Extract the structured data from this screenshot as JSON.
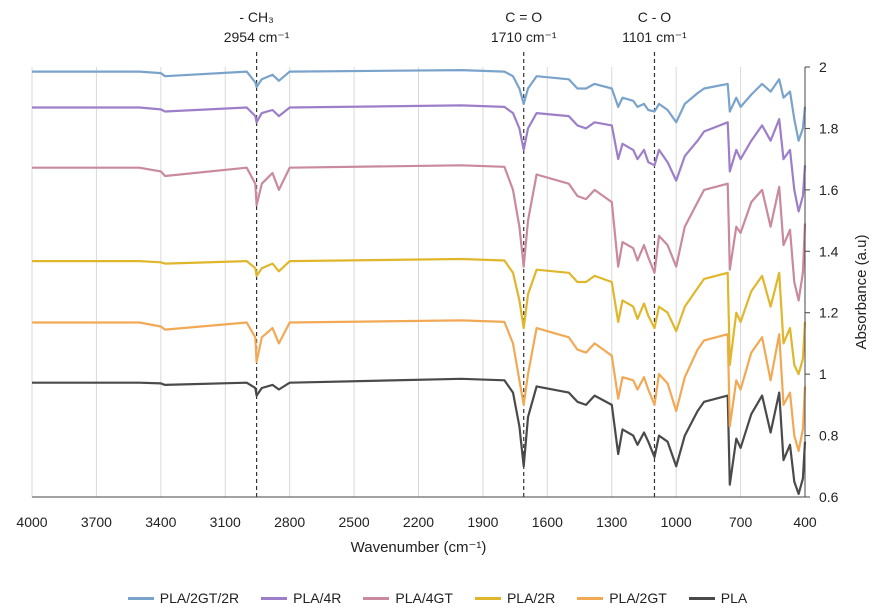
{
  "chart_data": {
    "type": "line",
    "title": "",
    "xlabel": "Wavenumber (cm⁻¹)",
    "ylabel": "Absorbance (a.u)",
    "xlim": [
      4000,
      400
    ],
    "ylim": [
      0.6,
      2
    ],
    "x_reversed": true,
    "y_axis_position": "right",
    "grid": "vertical",
    "legend_position": "bottom",
    "x_ticks": [
      "4000",
      "3700",
      "3400",
      "3100",
      "2800",
      "2500",
      "2200",
      "1900",
      "1600",
      "1300",
      "1000",
      "700",
      "400"
    ],
    "y_ticks": [
      "0.6",
      "0.8",
      "1",
      "1.2",
      "1.4",
      "1.6",
      "1.8",
      "2"
    ],
    "annotations": [
      {
        "x": 2954,
        "line1": "- CH₃",
        "line2": "2954 cm⁻¹"
      },
      {
        "x": 1710,
        "line1": "C = O",
        "line2": "1710 cm⁻¹"
      },
      {
        "x": 1101,
        "line1": "C - O",
        "line2": "1101 cm⁻¹"
      }
    ],
    "series": [
      {
        "name": "PLA/2GT/2R",
        "color": "#7aa3cc",
        "x": [
          4000,
          3500,
          3400,
          3380,
          3000,
          2960,
          2954,
          2930,
          2880,
          2850,
          2800,
          2000,
          1800,
          1760,
          1730,
          1710,
          1690,
          1650,
          1500,
          1460,
          1420,
          1380,
          1300,
          1270,
          1250,
          1200,
          1180,
          1150,
          1130,
          1101,
          1080,
          1040,
          1000,
          960,
          900,
          870,
          760,
          755,
          750,
          720,
          700,
          650,
          600,
          560,
          520,
          500,
          470,
          450,
          430,
          410,
          400
        ],
        "y": [
          1.985,
          1.985,
          1.98,
          1.97,
          1.985,
          1.95,
          1.935,
          1.96,
          1.975,
          1.955,
          1.985,
          1.99,
          1.985,
          1.97,
          1.93,
          1.88,
          1.93,
          1.97,
          1.96,
          1.93,
          1.93,
          1.945,
          1.93,
          1.87,
          1.9,
          1.89,
          1.87,
          1.88,
          1.86,
          1.855,
          1.88,
          1.86,
          1.82,
          1.88,
          1.915,
          1.93,
          1.945,
          1.9,
          1.855,
          1.9,
          1.87,
          1.91,
          1.945,
          1.92,
          1.96,
          1.9,
          1.92,
          1.83,
          1.76,
          1.8,
          1.87
        ]
      },
      {
        "name": "PLA/4R",
        "color": "#9d7fc9",
        "x": [
          4000,
          3500,
          3400,
          3380,
          3000,
          2960,
          2954,
          2930,
          2880,
          2850,
          2800,
          2000,
          1800,
          1760,
          1730,
          1710,
          1690,
          1650,
          1500,
          1460,
          1420,
          1380,
          1300,
          1270,
          1250,
          1200,
          1180,
          1150,
          1130,
          1101,
          1080,
          1040,
          1000,
          960,
          900,
          870,
          760,
          755,
          750,
          720,
          700,
          650,
          600,
          560,
          520,
          500,
          470,
          450,
          430,
          410,
          400
        ],
        "y": [
          1.868,
          1.868,
          1.862,
          1.855,
          1.868,
          1.84,
          1.82,
          1.85,
          1.86,
          1.84,
          1.868,
          1.875,
          1.87,
          1.85,
          1.8,
          1.73,
          1.8,
          1.85,
          1.84,
          1.81,
          1.8,
          1.82,
          1.81,
          1.7,
          1.75,
          1.73,
          1.7,
          1.73,
          1.69,
          1.68,
          1.73,
          1.69,
          1.63,
          1.71,
          1.76,
          1.79,
          1.82,
          1.74,
          1.66,
          1.73,
          1.7,
          1.76,
          1.81,
          1.76,
          1.83,
          1.7,
          1.73,
          1.6,
          1.53,
          1.58,
          1.68
        ]
      },
      {
        "name": "PLA/4GT",
        "color": "#c98a9d",
        "x": [
          4000,
          3500,
          3400,
          3380,
          3000,
          2960,
          2954,
          2930,
          2880,
          2850,
          2800,
          2000,
          1800,
          1760,
          1730,
          1710,
          1690,
          1650,
          1500,
          1460,
          1420,
          1380,
          1300,
          1270,
          1250,
          1200,
          1180,
          1150,
          1130,
          1101,
          1080,
          1040,
          1000,
          960,
          900,
          870,
          760,
          755,
          750,
          720,
          700,
          650,
          600,
          560,
          520,
          500,
          470,
          450,
          430,
          410,
          400
        ],
        "y": [
          1.672,
          1.672,
          1.66,
          1.645,
          1.672,
          1.62,
          1.55,
          1.62,
          1.655,
          1.6,
          1.672,
          1.68,
          1.675,
          1.6,
          1.48,
          1.35,
          1.5,
          1.65,
          1.62,
          1.58,
          1.57,
          1.6,
          1.56,
          1.35,
          1.43,
          1.41,
          1.37,
          1.42,
          1.38,
          1.33,
          1.45,
          1.42,
          1.35,
          1.48,
          1.56,
          1.6,
          1.62,
          1.48,
          1.34,
          1.48,
          1.46,
          1.56,
          1.6,
          1.48,
          1.61,
          1.42,
          1.47,
          1.3,
          1.24,
          1.33,
          1.49
        ]
      },
      {
        "name": "PLA/2R",
        "color": "#e0b72c",
        "x": [
          4000,
          3500,
          3400,
          3380,
          3000,
          2960,
          2954,
          2930,
          2880,
          2850,
          2800,
          2000,
          1800,
          1760,
          1730,
          1710,
          1690,
          1650,
          1500,
          1460,
          1420,
          1380,
          1300,
          1270,
          1250,
          1200,
          1180,
          1150,
          1130,
          1101,
          1080,
          1040,
          1000,
          960,
          900,
          870,
          760,
          755,
          750,
          720,
          700,
          650,
          600,
          560,
          520,
          500,
          470,
          450,
          430,
          410,
          400
        ],
        "y": [
          1.368,
          1.368,
          1.364,
          1.36,
          1.368,
          1.345,
          1.32,
          1.345,
          1.36,
          1.335,
          1.368,
          1.375,
          1.37,
          1.33,
          1.24,
          1.15,
          1.26,
          1.34,
          1.33,
          1.3,
          1.3,
          1.32,
          1.3,
          1.17,
          1.24,
          1.22,
          1.18,
          1.23,
          1.19,
          1.15,
          1.22,
          1.2,
          1.14,
          1.22,
          1.28,
          1.31,
          1.33,
          1.18,
          1.03,
          1.2,
          1.17,
          1.27,
          1.32,
          1.22,
          1.33,
          1.1,
          1.15,
          1.03,
          1.0,
          1.05,
          1.17
        ]
      },
      {
        "name": "PLA/2GT",
        "color": "#f2a955",
        "x": [
          4000,
          3500,
          3400,
          3380,
          3000,
          2960,
          2954,
          2930,
          2880,
          2850,
          2800,
          2000,
          1800,
          1760,
          1730,
          1710,
          1690,
          1650,
          1500,
          1460,
          1420,
          1380,
          1300,
          1270,
          1250,
          1200,
          1180,
          1150,
          1130,
          1101,
          1080,
          1040,
          1000,
          960,
          900,
          870,
          760,
          755,
          750,
          720,
          700,
          650,
          600,
          560,
          520,
          500,
          470,
          450,
          430,
          410,
          400
        ],
        "y": [
          1.168,
          1.168,
          1.155,
          1.145,
          1.168,
          1.12,
          1.04,
          1.12,
          1.15,
          1.1,
          1.168,
          1.175,
          1.17,
          1.1,
          0.98,
          0.9,
          1.0,
          1.15,
          1.12,
          1.08,
          1.07,
          1.1,
          1.06,
          0.92,
          0.99,
          0.98,
          0.95,
          0.99,
          0.95,
          0.9,
          1.0,
          0.97,
          0.88,
          0.99,
          1.08,
          1.11,
          1.13,
          0.98,
          0.83,
          0.98,
          0.95,
          1.07,
          1.12,
          0.98,
          1.13,
          0.9,
          0.94,
          0.8,
          0.75,
          0.82,
          0.96
        ]
      },
      {
        "name": "PLA",
        "color": "#4a4a4a",
        "x": [
          4000,
          3500,
          3400,
          3380,
          3000,
          2960,
          2954,
          2930,
          2880,
          2850,
          2800,
          2000,
          1800,
          1760,
          1730,
          1710,
          1690,
          1650,
          1500,
          1460,
          1420,
          1380,
          1300,
          1270,
          1250,
          1200,
          1180,
          1150,
          1130,
          1101,
          1080,
          1040,
          1000,
          960,
          900,
          870,
          760,
          755,
          750,
          720,
          700,
          650,
          600,
          560,
          520,
          500,
          470,
          450,
          430,
          410,
          400
        ],
        "y": [
          0.972,
          0.972,
          0.97,
          0.965,
          0.972,
          0.955,
          0.93,
          0.955,
          0.965,
          0.95,
          0.972,
          0.985,
          0.98,
          0.94,
          0.83,
          0.7,
          0.86,
          0.96,
          0.94,
          0.91,
          0.9,
          0.93,
          0.9,
          0.74,
          0.82,
          0.8,
          0.77,
          0.81,
          0.78,
          0.73,
          0.8,
          0.78,
          0.7,
          0.8,
          0.88,
          0.91,
          0.93,
          0.78,
          0.64,
          0.79,
          0.76,
          0.87,
          0.93,
          0.81,
          0.94,
          0.72,
          0.77,
          0.65,
          0.61,
          0.66,
          0.78
        ]
      }
    ]
  }
}
